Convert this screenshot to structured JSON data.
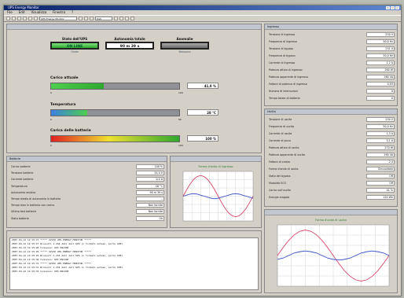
{
  "window": {
    "title": "UPS Energy Monitor"
  },
  "menu": [
    "File",
    "Edit",
    "Visualizza",
    "Finestra",
    "?"
  ],
  "toolbar": {
    "select1": "UPS Energy Monitor",
    "select2": "Dati"
  },
  "status": {
    "stato": {
      "label": "Stato dell'UPS",
      "value": "ON LINE",
      "sub": "Onde"
    },
    "autonomia": {
      "label": "Autonomia totale",
      "value": "90 m 39 s"
    },
    "anomalie": {
      "label": "Anomalie",
      "sub": "Nessuna"
    }
  },
  "gauges": [
    {
      "label": "Carico attuale",
      "value": "41,0 %",
      "level": 0.41,
      "min": "0",
      "max": "100"
    },
    {
      "label": "Temperatura",
      "value": "28 °C",
      "level": 0.28,
      "min": "0",
      "max": "60"
    },
    {
      "label": "Carica delle batterie",
      "value": "100 %",
      "level": 1.0,
      "min": "0",
      "max": "100"
    }
  ],
  "input_panel": {
    "title": "Ingresso",
    "rows": [
      {
        "k": "Tensione di ingresso",
        "v": "230 V"
      },
      {
        "k": "Frequenza di ingresso",
        "v": "50,0 Hz"
      },
      {
        "k": "Tensione di bypass",
        "v": "231 V"
      },
      {
        "k": "Frequenza di bypass",
        "v": "50,0 Hz"
      },
      {
        "k": "Corrente di ingresso",
        "v": "1,2 A"
      },
      {
        "k": "Potenza attiva di ingresso",
        "v": "260 W"
      },
      {
        "k": "Potenza apparente di ingresso",
        "v": "280 VA"
      },
      {
        "k": "Fattore di potenza di ingresso",
        "v": "0,93"
      },
      {
        "k": "Numero di interruzioni",
        "v": "0"
      },
      {
        "k": "Tempo totale di batteria",
        "v": "0"
      }
    ]
  },
  "output_panel": {
    "title": "Uscita",
    "rows": [
      {
        "k": "Tensione di uscita",
        "v": "230 V"
      },
      {
        "k": "Frequenza di uscita",
        "v": "50,0 Hz"
      },
      {
        "k": "Corrente di uscita",
        "v": "1,3 A"
      },
      {
        "k": "Corrente di picco",
        "v": "3,1 A"
      },
      {
        "k": "Potenza attiva di uscita",
        "v": "270 W"
      },
      {
        "k": "Potenza apparente di uscita",
        "v": "290 VA"
      },
      {
        "k": "Fattore di cresta",
        "v": "2,4"
      },
      {
        "k": "Forma d'onda di uscita",
        "v": "Sinusoidale"
      },
      {
        "k": "Stato del bypass",
        "v": "Off"
      },
      {
        "k": "Modalità ECO",
        "v": "Off"
      },
      {
        "k": "Carico sull'uscita",
        "v": "41 %"
      },
      {
        "k": "Energia erogata",
        "v": "120 Wh"
      }
    ]
  },
  "battery_panel": {
    "title": "Batterie",
    "rows": [
      {
        "k": "Carica batterie",
        "v": "100 %"
      },
      {
        "k": "Tensione batterie",
        "v": "54,0 V"
      },
      {
        "k": "Corrente batterie",
        "v": "0,0 A"
      },
      {
        "k": "Temperatura",
        "v": "28 °C"
      },
      {
        "k": "Autonomia residua",
        "v": "90 m 39 s"
      },
      {
        "k": "Tempo medio di autonomia in batteria",
        "v": "--"
      },
      {
        "k": "Tempo max in batteria con carico",
        "v": "Non fornito"
      },
      {
        "k": "Ultimo test batterie",
        "v": "Non fornito"
      },
      {
        "k": "Stato batterie",
        "v": "Ok"
      }
    ]
  },
  "charts": {
    "ingresso": {
      "title": "Forma d'onda di ingresso"
    },
    "uscita": {
      "title": "Forma d'onda di uscita"
    }
  },
  "chart_data": [
    {
      "type": "line",
      "title": "Forma d'onda di ingresso",
      "x": [
        0,
        1,
        2,
        3,
        4,
        5,
        6,
        7,
        8,
        9,
        10,
        11,
        12,
        13,
        14,
        15,
        16,
        17,
        18,
        19,
        20
      ],
      "series": [
        {
          "values": [
            0,
            0.31,
            0.59,
            0.81,
            0.95,
            1,
            0.95,
            0.81,
            0.59,
            0.31,
            0,
            -0.31,
            -0.59,
            -0.81,
            -0.95,
            -1,
            -0.95,
            -0.81,
            -0.59,
            -0.31,
            0
          ]
        },
        {
          "values": [
            0,
            0.05,
            0.1,
            0.12,
            0.1,
            0.05,
            0,
            -0.05,
            -0.1,
            -0.12,
            -0.1,
            -0.05,
            0,
            0.05,
            0.1,
            0.12,
            0.1,
            0.05,
            0,
            -0.05,
            -0.1
          ]
        }
      ],
      "ylim": [
        -1.2,
        1.2
      ]
    },
    {
      "type": "line",
      "title": "Forma d'onda di uscita",
      "x": [
        0,
        1,
        2,
        3,
        4,
        5,
        6,
        7,
        8,
        9,
        10,
        11,
        12,
        13,
        14,
        15,
        16,
        17,
        18,
        19,
        20
      ],
      "series": [
        {
          "values": [
            0,
            0.31,
            0.59,
            0.81,
            0.95,
            1,
            0.95,
            0.81,
            0.59,
            0.31,
            0,
            -0.31,
            -0.59,
            -0.81,
            -0.95,
            -1,
            -0.95,
            -0.81,
            -0.59,
            -0.31,
            0
          ]
        },
        {
          "values": [
            -0.15,
            -0.1,
            0,
            0.1,
            0.15,
            0.18,
            0.15,
            0.1,
            0,
            -0.1,
            -0.15,
            -0.18,
            -0.15,
            -0.1,
            0,
            0.1,
            0.15,
            0.18,
            0.15,
            0.1,
            0
          ]
        }
      ],
      "ylim": [
        -1.2,
        1.2
      ]
    }
  ],
  "log": [
    "2007-04-12 12:15:27   ***** AVVIO UPS ENERGY MONITOR *****",
    "2007-04-12 12:15:27   Ricevuti 1.234 dati dall'UPS in formato esteso, porta COM1",
    "2007-04-12 12:15:28   Connesso: UPS ONLINE",
    "2007-04-12 12:15:29   ***** AVVIO UPS ENERGY MONITOR *****",
    "2007-04-12 12:15:29   Ricevuti 1.234 dati dall'UPS in formato esteso, porta COM1",
    "2007-04-12 12:15:30   Connesso: UPS ONLINE",
    "2007-04-12 12:15:31   ***** AVVIO UPS ENERGY MONITOR *****",
    "2007-04-12 12:15:31   Ricevuti 1.234 dati dall'UPS in formato esteso, porta COM1",
    "2007-04-12 12:15:32   Connesso: UPS ONLINE"
  ]
}
